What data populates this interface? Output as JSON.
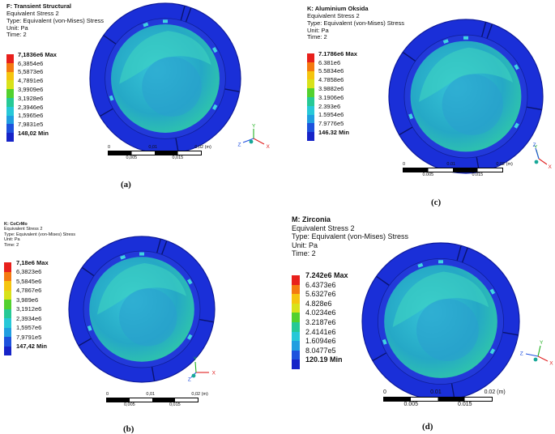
{
  "panels": [
    {
      "id": "a",
      "title": "F: Transient Structural",
      "lines": [
        "Equivalent Stress 2",
        "Type: Equivalent (von-Mises) Stress",
        "Unit: Pa",
        "Time: 2"
      ],
      "legend": [
        "7,1836e6 Max",
        "6,3854e6",
        "5,5873e6",
        "4,7891e6",
        "3,9909e6",
        "3,1928e6",
        "2,3946e6",
        "1,5965e6",
        "7,9831e5",
        "148,02 Min"
      ],
      "scale_top": [
        "0",
        "0,01",
        "0,02 (m)"
      ],
      "scale_bottom": [
        "0,005",
        "0,015"
      ],
      "caption": "(a)"
    },
    {
      "id": "c",
      "title": "K: Aluminium Oksida",
      "lines": [
        "Equivalent Stress 2",
        "Type: Equivalent (von-Mises) Stress",
        "Unit: Pa",
        "Time: 2"
      ],
      "legend": [
        "7.1786e6 Max",
        "6.381e6",
        "5.5834e6",
        "4.7858e6",
        "3.9882e6",
        "3.1906e6",
        "2.393e6",
        "1.5954e6",
        "7.9776e5",
        "146.32 Min"
      ],
      "scale_top": [
        "0",
        "0.01",
        "0.02 (m)"
      ],
      "scale_bottom": [
        "0.005",
        "0.015"
      ],
      "caption": "(c)"
    },
    {
      "id": "b",
      "title": "K: CoCrMo",
      "lines": [
        "Equivalent Stress 2",
        "Type: Equivalent (von-Mises) Stress",
        "Unit: Pa",
        "Time: 2"
      ],
      "legend": [
        "7,18e6 Max",
        "6,3823e6",
        "5,5845e6",
        "4,7867e6",
        "3,989e6",
        "3,1912e6",
        "2,3934e6",
        "1,5957e6",
        "7,9791e5",
        "147,42 Min"
      ],
      "scale_top": [
        "0",
        "0,01",
        "0,02 (m)"
      ],
      "scale_bottom": [
        "0,005",
        "0,015"
      ],
      "caption": "(b)"
    },
    {
      "id": "d",
      "title": "M: Zirconia",
      "lines": [
        "Equivalent Stress 2",
        "Type: Equivalent (von-Mises) Stress",
        "Unit: Pa",
        "Time: 2"
      ],
      "legend": [
        "7.242e6 Max",
        "6.4373e6",
        "5.6327e6",
        "4.828e6",
        "4.0234e6",
        "3.2187e6",
        "2.4141e6",
        "1.6094e6",
        "8.0477e5",
        "120.19 Min"
      ],
      "scale_top": [
        "0",
        "0.01",
        "0.02 (m)"
      ],
      "scale_bottom": [
        "0.005",
        "0.015"
      ],
      "caption": "(d)"
    }
  ],
  "legend_colors": [
    "#e8201c",
    "#f47a10",
    "#f5c50f",
    "#d8e21a",
    "#52d12e",
    "#26c996",
    "#27c8d8",
    "#209ee0",
    "#1d52dd",
    "#1624c8"
  ],
  "axis_labels": [
    "X",
    "Y",
    "Z"
  ],
  "model_colors": {
    "ring": "#1a2fd8",
    "ring_dark": "#0e1b9c",
    "inner": "#2bb7c9",
    "inner_light": "#3fd7bf"
  }
}
